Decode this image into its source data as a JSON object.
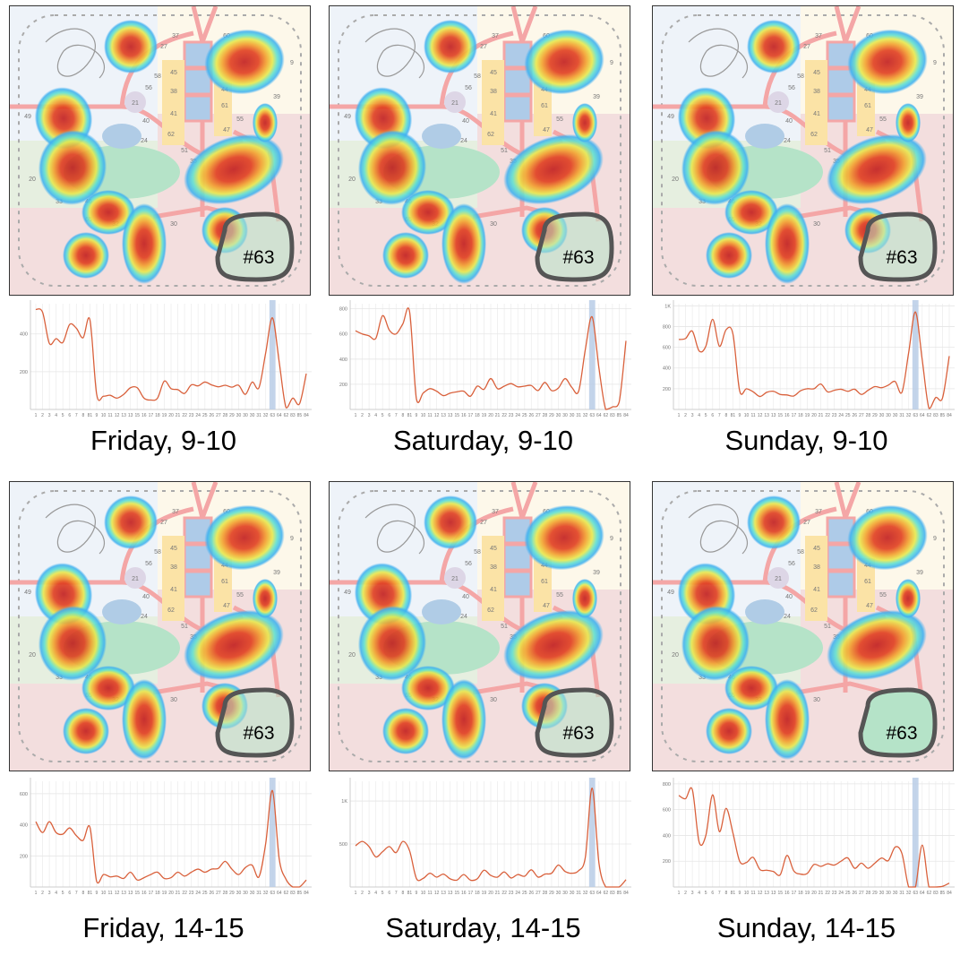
{
  "x_labels": [
    "1",
    "2",
    "3",
    "4",
    "5",
    "6",
    "7",
    "8",
    "81",
    "9",
    "10",
    "11",
    "12",
    "13",
    "13",
    "15",
    "16",
    "17",
    "18",
    "19",
    "20",
    "21",
    "22",
    "23",
    "24",
    "25",
    "26",
    "27",
    "28",
    "29",
    "30",
    "30",
    "30",
    "31",
    "32",
    "63",
    "64",
    "62",
    "83",
    "85",
    "84"
  ],
  "map_labels": [
    "37",
    "60",
    "27",
    "45",
    "38",
    "41",
    "62",
    "44",
    "61",
    "47",
    "49",
    "21",
    "40",
    "24",
    "51",
    "35",
    "20",
    "33",
    "46",
    "65",
    "32",
    "9",
    "39",
    "55",
    "58",
    "56",
    "30"
  ],
  "region_label": "#63",
  "colors": {
    "line": "#d9603b",
    "highlight": "#b8cde6",
    "region_fill": "#b5e3c8",
    "region_stroke": "#555555"
  },
  "chart_data": [
    {
      "type": "line",
      "caption": "Friday, 9-10",
      "highlight": "63",
      "heat_on_region": true,
      "ylim": [
        0,
        560
      ],
      "yticks": [
        {
          "value": 200,
          "label": "200"
        },
        {
          "value": 400,
          "label": "400"
        }
      ],
      "values": [
        530,
        515,
        350,
        375,
        355,
        450,
        430,
        380,
        475,
        80,
        70,
        75,
        60,
        80,
        115,
        115,
        60,
        50,
        60,
        150,
        110,
        105,
        85,
        130,
        125,
        145,
        130,
        120,
        128,
        118,
        128,
        80,
        145,
        115,
        300,
        485,
        250,
        10,
        60,
        30,
        190
      ]
    },
    {
      "type": "line",
      "caption": "Saturday, 9-10",
      "highlight": "63",
      "heat_on_region": true,
      "ylim": [
        0,
        840
      ],
      "yticks": [
        {
          "value": 200,
          "label": "200"
        },
        {
          "value": 400,
          "label": "400"
        },
        {
          "value": 600,
          "label": "600"
        },
        {
          "value": 800,
          "label": "800"
        }
      ],
      "values": [
        625,
        600,
        585,
        565,
        745,
        630,
        600,
        680,
        775,
        85,
        130,
        165,
        145,
        110,
        130,
        140,
        145,
        105,
        185,
        160,
        245,
        165,
        185,
        205,
        180,
        185,
        190,
        150,
        215,
        150,
        170,
        245,
        175,
        145,
        480,
        735,
        330,
        0,
        20,
        60,
        545
      ]
    },
    {
      "type": "line",
      "caption": "Sunday, 9-10",
      "highlight": "63",
      "heat_on_region": true,
      "ylim": [
        0,
        1020
      ],
      "yticks": [
        {
          "value": 200,
          "label": "200"
        },
        {
          "value": 400,
          "label": "400"
        },
        {
          "value": 600,
          "label": "600"
        },
        {
          "value": 800,
          "label": "800"
        },
        {
          "value": 1000,
          "label": "1K"
        }
      ],
      "values": [
        675,
        685,
        755,
        565,
        610,
        870,
        610,
        770,
        730,
        180,
        200,
        170,
        125,
        165,
        175,
        145,
        140,
        130,
        180,
        200,
        200,
        245,
        170,
        185,
        195,
        175,
        195,
        145,
        185,
        220,
        210,
        235,
        270,
        165,
        550,
        940,
        480,
        10,
        115,
        110,
        515
      ]
    },
    {
      "type": "line",
      "caption": "Friday, 14-15",
      "highlight": "63",
      "heat_on_region": true,
      "ylim": [
        0,
        680
      ],
      "yticks": [
        {
          "value": 200,
          "label": "200"
        },
        {
          "value": 400,
          "label": "400"
        },
        {
          "value": 600,
          "label": "600"
        }
      ],
      "values": [
        420,
        350,
        420,
        350,
        340,
        380,
        330,
        300,
        385,
        35,
        80,
        65,
        70,
        55,
        95,
        45,
        60,
        80,
        95,
        55,
        60,
        95,
        70,
        95,
        115,
        95,
        115,
        120,
        165,
        115,
        80,
        125,
        140,
        65,
        280,
        620,
        180,
        50,
        0,
        0,
        45
      ]
    },
    {
      "type": "line",
      "caption": "Saturday, 14-15",
      "highlight": "63",
      "heat_on_region": true,
      "ylim": [
        0,
        1230
      ],
      "yticks": [
        {
          "value": 500,
          "label": "500"
        },
        {
          "value": 1000,
          "label": "1K"
        }
      ],
      "values": [
        480,
        530,
        470,
        350,
        410,
        470,
        400,
        530,
        420,
        100,
        100,
        160,
        115,
        150,
        95,
        80,
        145,
        80,
        95,
        195,
        135,
        115,
        175,
        105,
        145,
        125,
        200,
        115,
        150,
        160,
        255,
        180,
        160,
        190,
        350,
        1150,
        280,
        0,
        0,
        0,
        85
      ]
    },
    {
      "type": "line",
      "caption": "Sunday, 14-15",
      "highlight": "63",
      "heat_on_region": false,
      "ylim": [
        0,
        820
      ],
      "yticks": [
        {
          "value": 200,
          "label": "200"
        },
        {
          "value": 400,
          "label": "400"
        },
        {
          "value": 600,
          "label": "600"
        },
        {
          "value": 800,
          "label": "800"
        }
      ],
      "values": [
        710,
        685,
        755,
        350,
        400,
        715,
        430,
        610,
        420,
        200,
        190,
        230,
        135,
        130,
        120,
        95,
        245,
        125,
        100,
        105,
        175,
        160,
        180,
        170,
        200,
        225,
        145,
        185,
        145,
        185,
        225,
        205,
        310,
        260,
        0,
        0,
        325,
        0,
        0,
        5,
        30
      ]
    }
  ]
}
